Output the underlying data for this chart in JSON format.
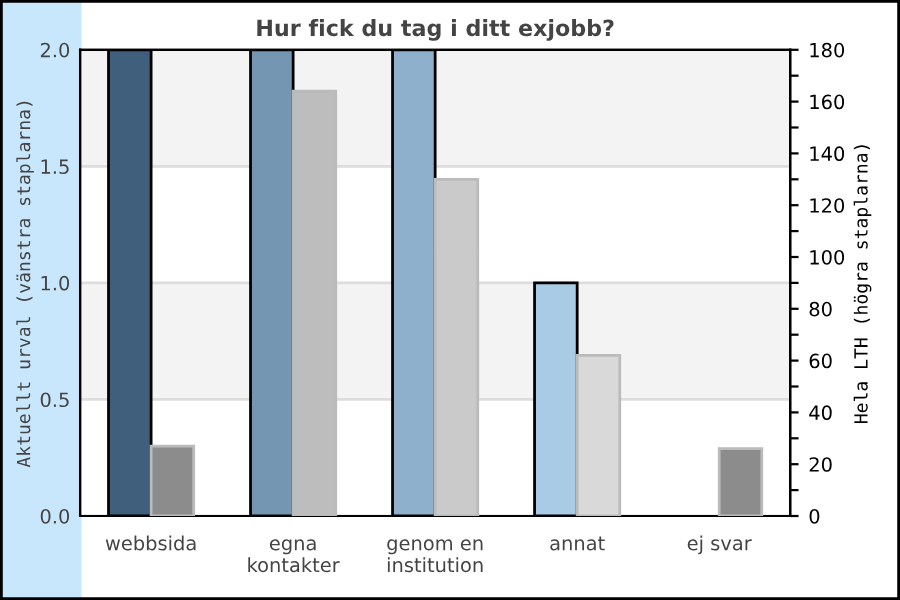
{
  "chart_data": {
    "type": "bar",
    "title": "Hur fick du tag i ditt exjobb?",
    "ylabel": "Aktuellt urval (vänstra staplarna)",
    "y2label": "Hela LTH (högra staplarna)",
    "categories": [
      "webbsida",
      "egna\nkontakter",
      "genom en\ninstitution",
      "annat",
      "ej svar"
    ],
    "series": [
      {
        "colors": [
          "#3f5f7c",
          "#7496b2",
          "#8fb0cc",
          "#a9cbe6",
          "#c5ddf0"
        ],
        "values": [
          2,
          2,
          2,
          1,
          0
        ]
      },
      {
        "axis": "y2",
        "colors": [
          "#8c8c8c",
          "#bdbdbd",
          "#cacaca",
          "#d9d9d9",
          "#8c8c8c"
        ],
        "values": [
          27,
          164,
          130,
          62,
          26
        ]
      }
    ],
    "ylim": [
      0,
      2
    ],
    "yticks": [
      {
        "value": 0,
        "label": "0.0"
      },
      {
        "value": 0.5,
        "label": "0.5"
      },
      {
        "value": 1,
        "label": "1.0"
      },
      {
        "value": 1.5,
        "label": "1.5"
      },
      {
        "value": 2,
        "label": "2.0"
      }
    ],
    "y2lim": [
      0,
      180
    ],
    "y2ticks": [
      0,
      {
        "value": 10,
        "label": null
      },
      20,
      {
        "value": 30,
        "label": null
      },
      40,
      {
        "value": 50,
        "label": null
      },
      60,
      {
        "value": 70,
        "label": null
      },
      80,
      {
        "value": 90,
        "label": null
      },
      100,
      {
        "value": 110,
        "label": null
      },
      120,
      {
        "value": 130,
        "label": null
      },
      140,
      {
        "value": 150,
        "label": null
      },
      160,
      {
        "value": 170,
        "label": null
      },
      180
    ],
    "bands": [
      {
        "axis": "y",
        "from": 0.5,
        "to": 1.0,
        "color": "#f3f3f3"
      },
      {
        "axis": "y",
        "from": 1.5,
        "to": 2.0,
        "color": "#f3f3f3"
      }
    ],
    "grid": "y"
  }
}
